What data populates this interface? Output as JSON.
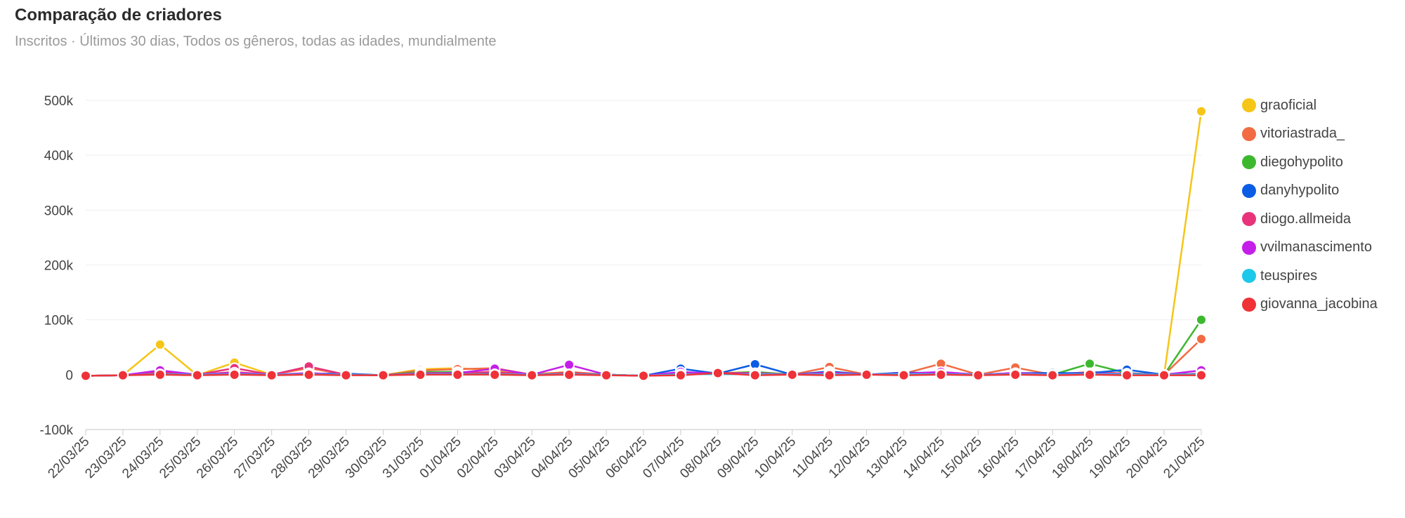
{
  "header": {
    "title": "Comparação de criadores",
    "subtitle": "Inscritos · Últimos 30 dias, Todos os gêneros, todas as idades, mundialmente"
  },
  "chart_data": {
    "type": "line",
    "x": [
      "22/03/25",
      "23/03/25",
      "24/03/25",
      "25/03/25",
      "26/03/25",
      "27/03/25",
      "28/03/25",
      "29/03/25",
      "30/03/25",
      "31/03/25",
      "01/04/25",
      "02/04/25",
      "03/04/25",
      "04/04/25",
      "05/04/25",
      "06/04/25",
      "07/04/25",
      "08/04/25",
      "09/04/25",
      "10/04/25",
      "11/04/25",
      "12/04/25",
      "13/04/25",
      "14/04/25",
      "15/04/25",
      "16/04/25",
      "17/04/25",
      "18/04/25",
      "19/04/25",
      "20/04/25",
      "21/04/25"
    ],
    "yticks": [
      500000,
      400000,
      300000,
      200000,
      100000,
      0,
      -100000
    ],
    "ytick_labels": [
      "500k",
      "400k",
      "300k",
      "200k",
      "100k",
      "0",
      "-100k"
    ],
    "ylim": [
      -100000,
      500000
    ],
    "grid": true,
    "legend_position": "right",
    "series": [
      {
        "name": "graoficial",
        "color": "#f5c518",
        "values": [
          -2000,
          -1000,
          55000,
          -1000,
          22000,
          0,
          1000,
          0,
          -1000,
          10000,
          12000,
          8000,
          1000,
          5000,
          0,
          -2000,
          2000,
          3000,
          5000,
          0,
          3000,
          0,
          1000,
          3000,
          0,
          2000,
          0,
          3000,
          1000,
          0,
          480000
        ]
      },
      {
        "name": "vitoriastrada_",
        "color": "#f26b43",
        "values": [
          -2000,
          -1000,
          2000,
          0,
          5000,
          0,
          12000,
          0,
          -1000,
          8000,
          10000,
          12000,
          0,
          5000,
          0,
          -2000,
          3000,
          2000,
          3000,
          0,
          14000,
          0,
          2000,
          20000,
          0,
          13000,
          0,
          5000,
          2000,
          0,
          65000
        ]
      },
      {
        "name": "diegohypolito",
        "color": "#3cb82e",
        "values": [
          -2000,
          -1000,
          1000,
          0,
          2000,
          0,
          1000,
          0,
          -1000,
          5000,
          5000,
          3000,
          0,
          2000,
          0,
          -2000,
          1000,
          2000,
          5000,
          0,
          2000,
          0,
          1000,
          2000,
          0,
          2000,
          0,
          20000,
          3000,
          0,
          100000
        ]
      },
      {
        "name": "danyhypolito",
        "color": "#0b5ce5",
        "values": [
          -2000,
          -1000,
          3000,
          0,
          3000,
          0,
          2000,
          2000,
          -1000,
          2000,
          3000,
          4000,
          0,
          3000,
          0,
          -2000,
          11000,
          2000,
          19000,
          0,
          6000,
          0,
          4000,
          3000,
          0,
          3000,
          3000,
          3000,
          9000,
          0,
          2000
        ]
      },
      {
        "name": "diogo.allmeida",
        "color": "#e8337a",
        "values": [
          -2000,
          -1000,
          5000,
          0,
          12000,
          0,
          15000,
          0,
          -1000,
          3000,
          3000,
          5000,
          0,
          3000,
          0,
          -2000,
          2000,
          3000,
          3000,
          0,
          4000,
          0,
          2000,
          4000,
          0,
          3000,
          0,
          2000,
          2000,
          0,
          2000
        ]
      },
      {
        "name": "vvilmanascimento",
        "color": "#c41fe8",
        "values": [
          -2000,
          -1000,
          8000,
          0,
          4000,
          0,
          3000,
          0,
          -1000,
          2000,
          3000,
          11000,
          0,
          18000,
          0,
          -2000,
          5000,
          2000,
          2000,
          0,
          3000,
          0,
          2000,
          5000,
          0,
          3000,
          0,
          2000,
          2000,
          0,
          8000
        ]
      },
      {
        "name": "teuspires",
        "color": "#1ec8ea",
        "values": [
          -2000,
          -1000,
          1000,
          0,
          1000,
          0,
          1000,
          0,
          -1000,
          1000,
          1000,
          1000,
          0,
          1000,
          0,
          -2000,
          1000,
          1000,
          1000,
          0,
          1000,
          0,
          1000,
          1000,
          0,
          1000,
          0,
          1000,
          1000,
          0,
          1000
        ]
      },
      {
        "name": "giovanna_jacobina",
        "color": "#ef3138",
        "values": [
          -2000,
          -1000,
          0,
          -1000,
          0,
          -1000,
          0,
          -1000,
          -1000,
          0,
          0,
          0,
          -1000,
          0,
          -1000,
          -2000,
          -1000,
          3000,
          -1000,
          0,
          -1000,
          0,
          -1000,
          0,
          -1000,
          0,
          -1000,
          0,
          -1000,
          -1000,
          -1000
        ]
      }
    ]
  }
}
